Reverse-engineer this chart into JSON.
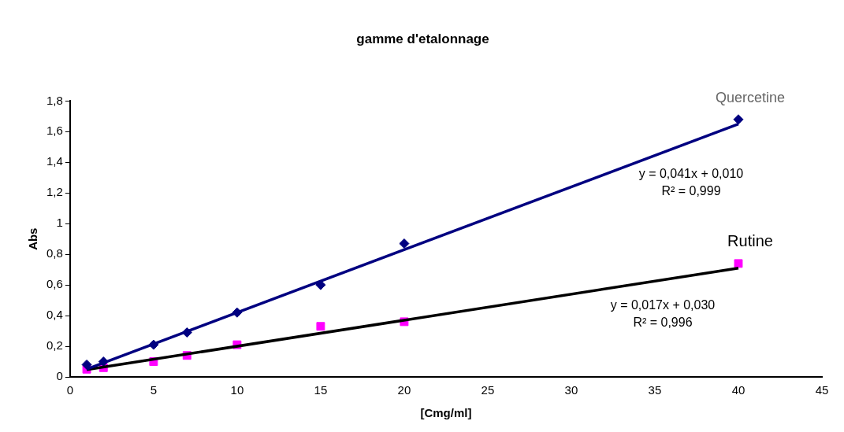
{
  "chart_data": {
    "type": "scatter",
    "title": "gamme d'etalonnage",
    "xlabel": "[Cmg/ml]",
    "ylabel": "Abs",
    "xlim": [
      0,
      45
    ],
    "xticks": [
      0,
      5,
      10,
      15,
      20,
      25,
      30,
      35,
      40,
      45
    ],
    "ylim": [
      0,
      1.8
    ],
    "yticks": [
      {
        "value": 0,
        "label": "0"
      },
      {
        "value": 0.2,
        "label": "0,2"
      },
      {
        "value": 0.4,
        "label": "0,4"
      },
      {
        "value": 0.6,
        "label": "0,6"
      },
      {
        "value": 0.8,
        "label": "0,8"
      },
      {
        "value": 1,
        "label": "1"
      },
      {
        "value": 1.2,
        "label": "1,2"
      },
      {
        "value": 1.4,
        "label": "1,4"
      },
      {
        "value": 1.6,
        "label": "1,6"
      },
      {
        "value": 1.8,
        "label": "1,8"
      }
    ],
    "grid": false,
    "legend": false,
    "series": [
      {
        "type": "line",
        "color": "#000080",
        "x": [
          1,
          40
        ],
        "values": [
          0.051,
          1.65
        ],
        "marker": "none"
      },
      {
        "type": "line",
        "color": "#000000",
        "x": [
          1,
          40
        ],
        "values": [
          0.047,
          0.71
        ],
        "marker": "none"
      },
      {
        "name": "Quercetine",
        "type": "scatter",
        "color": "#000080",
        "marker": "diamond",
        "x": [
          1,
          2,
          5,
          7,
          10,
          15,
          20,
          40
        ],
        "values": [
          0.08,
          0.1,
          0.21,
          0.29,
          0.42,
          0.6,
          0.87,
          1.68
        ]
      },
      {
        "name": "Rutine",
        "type": "scatter",
        "color": "#ff00ff",
        "marker": "square",
        "x": [
          1,
          2,
          5,
          7,
          10,
          15,
          20,
          40
        ],
        "values": [
          0.05,
          0.06,
          0.1,
          0.14,
          0.21,
          0.33,
          0.36,
          0.74
        ]
      }
    ],
    "annotations": [
      "y = 0,041x + 0,010",
      "R² = 0,999",
      "y = 0,017x + 0,030",
      "R² = 0,996"
    ]
  }
}
